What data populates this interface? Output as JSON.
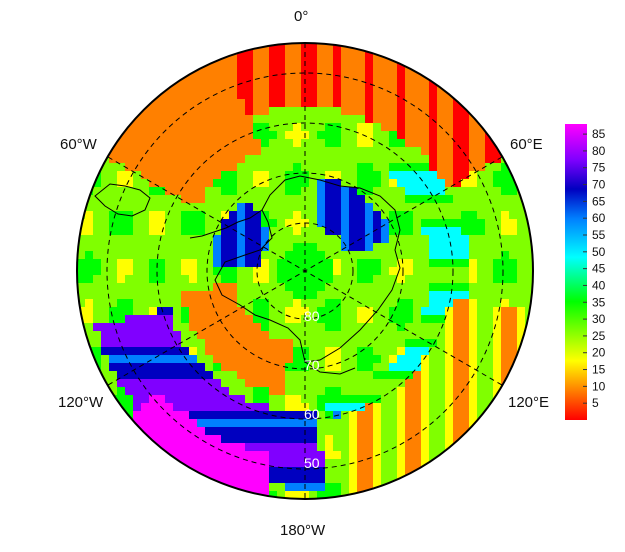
{
  "map": {
    "projection": "south-polar-stereographic",
    "longitude_labels": {
      "top": "0°",
      "upper_left": "60°W",
      "upper_right": "60°E",
      "lower_left": "120°W",
      "lower_right": "120°E",
      "bottom": "180°W"
    },
    "latitude_labels": [
      "80",
      "70",
      "60",
      "50"
    ],
    "gridlines": "dashed"
  },
  "colorbar": {
    "ticks": [
      85,
      80,
      75,
      70,
      65,
      60,
      55,
      50,
      45,
      40,
      35,
      30,
      25,
      20,
      15,
      10,
      5
    ],
    "range": [
      0,
      88
    ],
    "colormap": [
      "#ff0000",
      "#ff8000",
      "#ffff00",
      "#80ff00",
      "#00ff00",
      "#00ffff",
      "#0080ff",
      "#0000c0",
      "#8000ff",
      "#ff00ff"
    ]
  }
}
